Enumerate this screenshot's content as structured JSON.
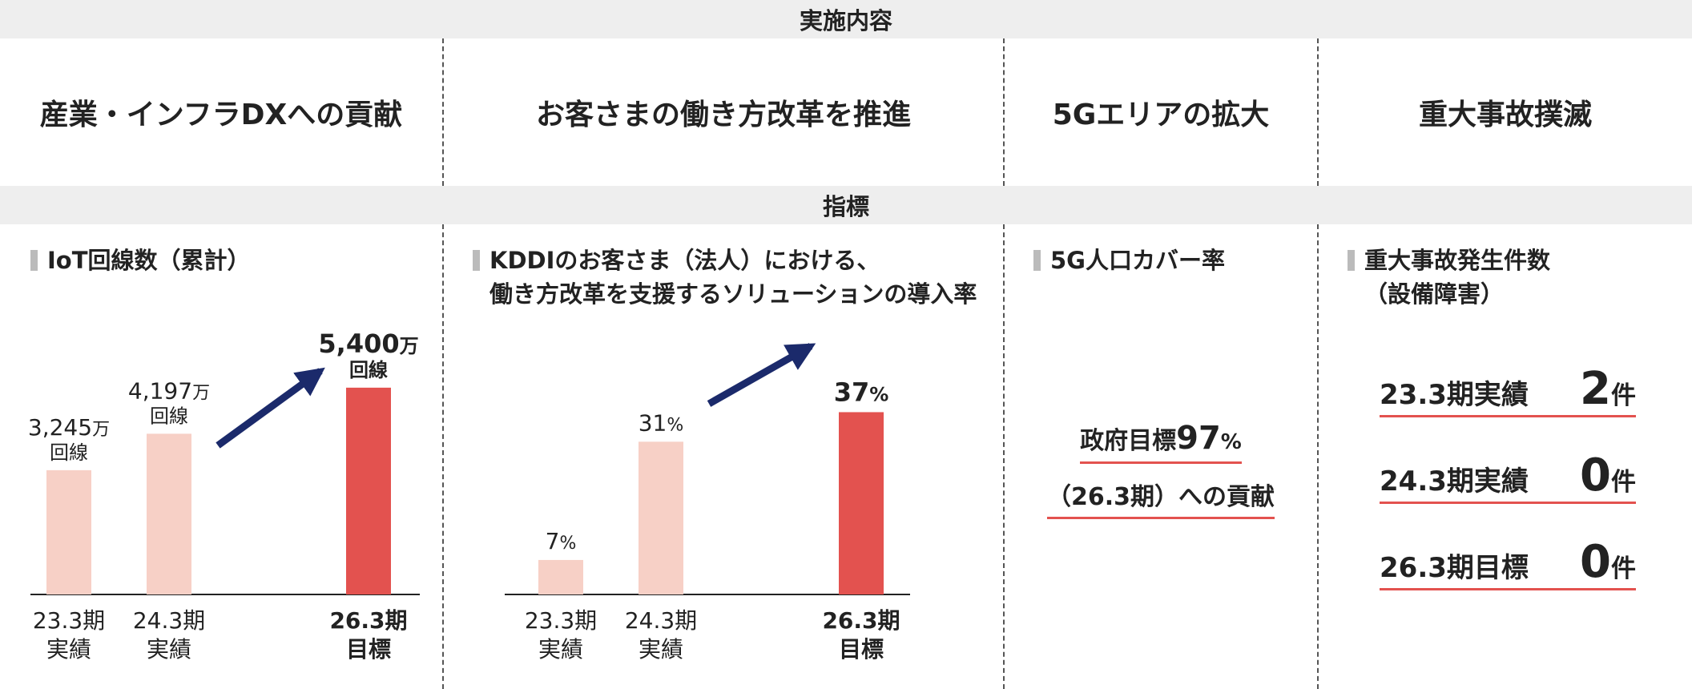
{
  "headers": {
    "implementation": "実施内容",
    "indicators": "指標"
  },
  "tasks": [
    "産業・インフラDXへの貢献",
    "お客さまの働き方改革を推進",
    "5Gエリアの拡大",
    "重大事故撲滅"
  ],
  "kpi_titles": {
    "iot": [
      "IoT回線数（累計）"
    ],
    "solution": [
      "KDDIのお客さま（法人）における、",
      "働き方改革を支援するソリューションの導入率"
    ],
    "coverage": [
      "5G人口カバー率"
    ],
    "accidents": [
      "重大事故発生件数",
      "（設備障害）"
    ]
  },
  "chart_data": [
    {
      "type": "bar",
      "title": "IoT回線数（累計）",
      "categories": [
        [
          "23.3期",
          "実績"
        ],
        [
          "24.3期",
          "実績"
        ],
        [
          "26.3期",
          "目標"
        ]
      ],
      "values": [
        3245,
        4197,
        5400
      ],
      "value_labels": [
        "3,245",
        "4,197",
        "5,400"
      ],
      "unit": "万",
      "unit_sub": "回線",
      "colors": [
        "#f7d0c6",
        "#f7d0c6",
        "#e3524f"
      ],
      "target_index": 2,
      "arrow": true
    },
    {
      "type": "bar",
      "title": "ソリューションの導入率",
      "categories": [
        [
          "23.3期",
          "実績"
        ],
        [
          "24.3期",
          "実績"
        ],
        [
          "26.3期",
          "目標"
        ]
      ],
      "values": [
        7,
        31,
        37
      ],
      "value_labels": [
        "7",
        "31",
        "37"
      ],
      "unit": "%",
      "colors": [
        "#f7d0c6",
        "#f7d0c6",
        "#e3524f"
      ],
      "target_index": 2,
      "arrow": true
    }
  ],
  "coverage": {
    "label": "政府目標",
    "value": "97",
    "unit": "%",
    "line2": "（26.3期）への貢献"
  },
  "accidents": [
    {
      "label": "23.3期実績",
      "value": "2",
      "unit": "件"
    },
    {
      "label": "24.3期実績",
      "value": "0",
      "unit": "件"
    },
    {
      "label": "26.3期目標",
      "value": "0",
      "unit": "件"
    }
  ],
  "colors": {
    "accent": "#e3524f",
    "light": "#f7d0c6",
    "arrow": "#1b2a6b",
    "band": "#eeeeee"
  }
}
